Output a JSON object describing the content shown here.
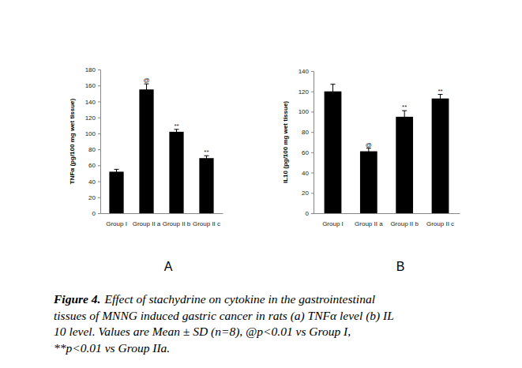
{
  "chart_data": [
    {
      "type": "bar",
      "title": "A",
      "y_label": "TNFα (pg/100 mg wet tissue)",
      "categories": [
        "Group I",
        "Group II a",
        "Group II b",
        "Group II c"
      ],
      "values": [
        52,
        155,
        102,
        69
      ],
      "errors": [
        3,
        7,
        3,
        3
      ],
      "color": "#000000",
      "annotations": [
        {
          "x": "Group II a",
          "text": "@"
        },
        {
          "x": "Group II b",
          "text": "**"
        },
        {
          "x": "Group II c",
          "text": "**"
        }
      ],
      "ylim": [
        0,
        180
      ],
      "yticks": [
        0,
        20,
        40,
        60,
        80,
        100,
        120,
        140,
        160,
        180
      ],
      "grid": false
    },
    {
      "type": "bar",
      "title": "B",
      "y_label": "IL10 (pg/100 mg wet tissue)",
      "categories": [
        "Group I",
        "Group II a",
        "Group II b",
        "Group II c"
      ],
      "values": [
        120,
        61,
        95,
        113
      ],
      "errors": [
        7,
        3,
        6,
        4
      ],
      "color": "#000000",
      "annotations": [
        {
          "x": "Group II a",
          "text": "@"
        },
        {
          "x": "Group II b",
          "text": "**"
        },
        {
          "x": "Group II c",
          "text": "**"
        }
      ],
      "ylim": [
        0,
        140
      ],
      "yticks": [
        0,
        20,
        40,
        60,
        80,
        100,
        120,
        140
      ],
      "grid": false
    }
  ],
  "caption": {
    "label": "Figure 4.",
    "lines": [
      "Effect of stachydrine on cytokine in the gastrointestinal",
      "tissues of MNNG induced gastric cancer in rats (a) TNFα level (b) IL",
      "10 level. Values are Mean ± SD (n=8), @p<0.01 vs Group I,",
      "**p<0.01 vs Group IIa."
    ]
  }
}
